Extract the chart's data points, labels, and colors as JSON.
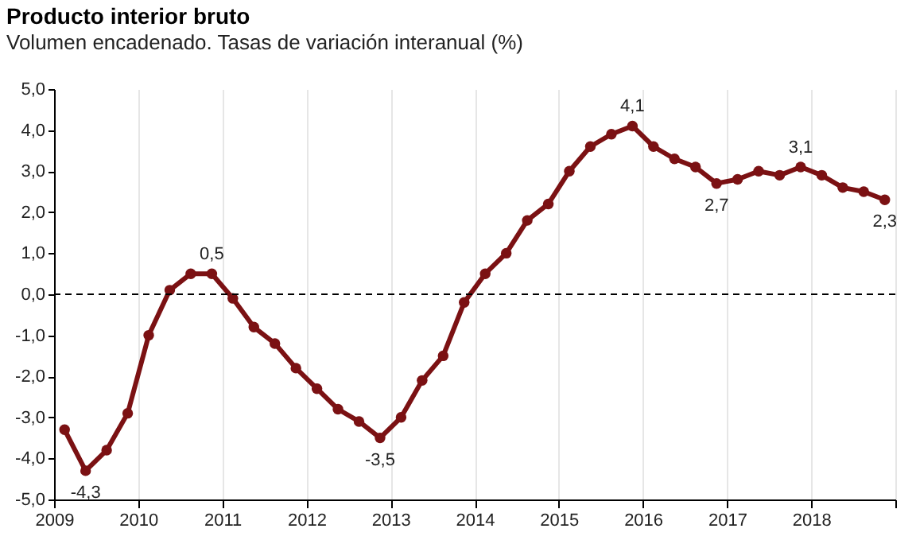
{
  "chart_data": {
    "type": "line",
    "title": "Producto interior bruto",
    "subtitle": "Volumen encadenado. Tasas de variación interanual (%)",
    "x": [
      2009.125,
      2009.375,
      2009.625,
      2009.875,
      2010.125,
      2010.375,
      2010.625,
      2010.875,
      2011.125,
      2011.375,
      2011.625,
      2011.875,
      2012.125,
      2012.375,
      2012.625,
      2012.875,
      2013.125,
      2013.375,
      2013.625,
      2013.875,
      2014.125,
      2014.375,
      2014.625,
      2014.875,
      2015.125,
      2015.375,
      2015.625,
      2015.875,
      2016.125,
      2016.375,
      2016.625,
      2016.875,
      2017.125,
      2017.375,
      2017.625,
      2017.875,
      2018.125,
      2018.375,
      2018.625,
      2018.875
    ],
    "series": [
      {
        "color": "#7b1113",
        "values": [
          -3.3,
          -4.3,
          -3.8,
          -2.9,
          -1.0,
          0.1,
          0.5,
          0.5,
          -0.1,
          -0.8,
          -1.2,
          -1.8,
          -2.3,
          -2.8,
          -3.1,
          -3.5,
          -3.0,
          -2.1,
          -1.5,
          -0.2,
          0.5,
          1.0,
          1.8,
          2.2,
          3.0,
          3.6,
          3.9,
          4.1,
          3.6,
          3.3,
          3.1,
          2.7,
          2.8,
          3.0,
          2.9,
          3.1,
          2.9,
          2.6,
          2.5,
          2.3
        ],
        "value_labels": [
          null,
          "-4,3",
          null,
          null,
          null,
          null,
          null,
          "0,5",
          null,
          null,
          null,
          null,
          null,
          null,
          null,
          "-3,5",
          null,
          null,
          null,
          null,
          null,
          null,
          null,
          null,
          null,
          null,
          null,
          "4,1",
          null,
          null,
          null,
          "2,7",
          null,
          null,
          null,
          "3,1",
          null,
          null,
          null,
          "2,3"
        ]
      }
    ],
    "xlim": [
      2009,
      2019
    ],
    "xticks": [
      2009,
      2010,
      2011,
      2012,
      2013,
      2014,
      2015,
      2016,
      2017,
      2018,
      {
        "value": 2019,
        "label": null
      }
    ],
    "ylim": [
      -5,
      5
    ],
    "yticks": [
      {
        "value": -5,
        "label": "-5,0"
      },
      {
        "value": -4,
        "label": "-4,0"
      },
      {
        "value": -3,
        "label": "-3,0"
      },
      {
        "value": -2,
        "label": "-2,0"
      },
      {
        "value": -1,
        "label": "-1,0"
      },
      {
        "value": 0,
        "label": "0,0"
      },
      {
        "value": 1,
        "label": "1,0"
      },
      {
        "value": 2,
        "label": "2,0"
      },
      {
        "value": 3,
        "label": "3,0"
      },
      {
        "value": 4,
        "label": "4,0"
      },
      {
        "value": 5,
        "label": "5,0"
      }
    ],
    "grid": "x",
    "marker": "circle",
    "line_style": "solid",
    "ref_lines": [
      {
        "axis": "y",
        "value": 0,
        "line_style": "dashed",
        "color": "#000000"
      }
    ]
  }
}
